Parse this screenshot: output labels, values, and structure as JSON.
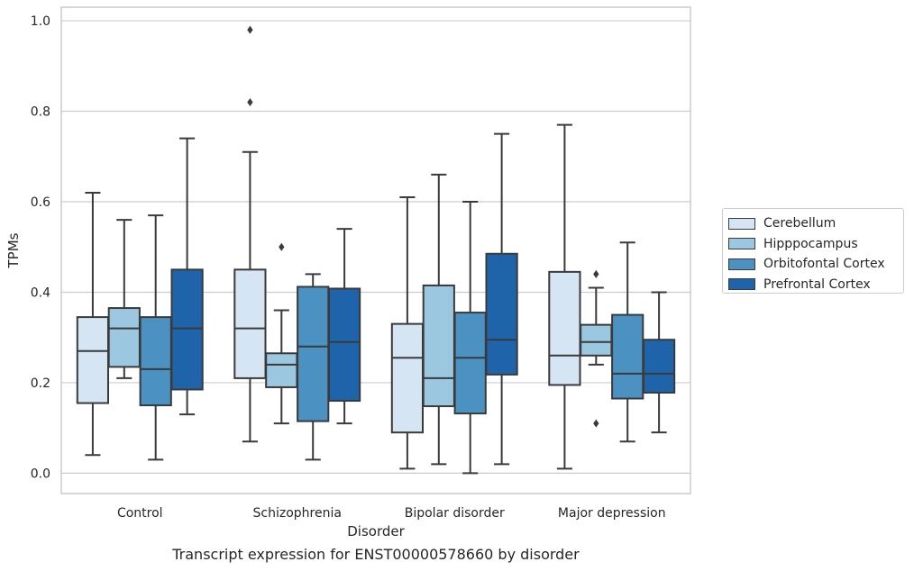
{
  "caption": "Transcript expression for ENST00000578660 by disorder",
  "colors": {
    "grid": "#cccccc",
    "frame": "#cccccc",
    "box_edge": "#3a3a3a",
    "series": [
      "#d6e5f4",
      "#9bc7e0",
      "#4b91c2",
      "#1f64ab"
    ]
  },
  "chart_data": {
    "type": "box",
    "xlabel": "Disorder",
    "ylabel": "TPMs",
    "ylim": [
      -0.045,
      1.03
    ],
    "yticks": [
      0.0,
      0.2,
      0.4,
      0.6,
      0.8,
      1.0
    ],
    "ytick_labels": [
      "0.0",
      "0.2",
      "0.4",
      "0.6",
      "0.8",
      "1.0"
    ],
    "grid": "horizontal",
    "legend_position": "outside-right",
    "categories": [
      "Control",
      "Schizophrenia",
      "Bipolar disorder",
      "Major depression"
    ],
    "series": [
      {
        "name": "Cerebellum",
        "boxes": [
          {
            "whislo": 0.04,
            "q1": 0.155,
            "med": 0.27,
            "q3": 0.345,
            "whishi": 0.62,
            "fliers": []
          },
          {
            "whislo": 0.07,
            "q1": 0.21,
            "med": 0.32,
            "q3": 0.45,
            "whishi": 0.71,
            "fliers": [
              0.82,
              0.98
            ]
          },
          {
            "whislo": 0.01,
            "q1": 0.09,
            "med": 0.255,
            "q3": 0.33,
            "whishi": 0.61,
            "fliers": []
          },
          {
            "whislo": 0.01,
            "q1": 0.195,
            "med": 0.26,
            "q3": 0.445,
            "whishi": 0.77,
            "fliers": []
          }
        ]
      },
      {
        "name": "Hipppocampus",
        "boxes": [
          {
            "whislo": 0.21,
            "q1": 0.235,
            "med": 0.32,
            "q3": 0.365,
            "whishi": 0.56,
            "fliers": []
          },
          {
            "whislo": 0.11,
            "q1": 0.19,
            "med": 0.24,
            "q3": 0.265,
            "whishi": 0.36,
            "fliers": [
              0.5
            ]
          },
          {
            "whislo": 0.02,
            "q1": 0.148,
            "med": 0.21,
            "q3": 0.415,
            "whishi": 0.66,
            "fliers": []
          },
          {
            "whislo": 0.24,
            "q1": 0.26,
            "med": 0.29,
            "q3": 0.328,
            "whishi": 0.41,
            "fliers": [
              0.11,
              0.44
            ]
          }
        ]
      },
      {
        "name": "Orbitofontal Cortex",
        "boxes": [
          {
            "whislo": 0.03,
            "q1": 0.15,
            "med": 0.23,
            "q3": 0.345,
            "whishi": 0.57,
            "fliers": []
          },
          {
            "whislo": 0.03,
            "q1": 0.115,
            "med": 0.28,
            "q3": 0.412,
            "whishi": 0.44,
            "fliers": []
          },
          {
            "whislo": 0.0,
            "q1": 0.132,
            "med": 0.255,
            "q3": 0.355,
            "whishi": 0.6,
            "fliers": []
          },
          {
            "whislo": 0.07,
            "q1": 0.165,
            "med": 0.22,
            "q3": 0.35,
            "whishi": 0.51,
            "fliers": []
          }
        ]
      },
      {
        "name": "Prefrontal Cortex",
        "boxes": [
          {
            "whislo": 0.13,
            "q1": 0.185,
            "med": 0.32,
            "q3": 0.45,
            "whishi": 0.74,
            "fliers": []
          },
          {
            "whislo": 0.11,
            "q1": 0.16,
            "med": 0.29,
            "q3": 0.408,
            "whishi": 0.54,
            "fliers": []
          },
          {
            "whislo": 0.02,
            "q1": 0.218,
            "med": 0.295,
            "q3": 0.485,
            "whishi": 0.75,
            "fliers": []
          },
          {
            "whislo": 0.09,
            "q1": 0.178,
            "med": 0.22,
            "q3": 0.295,
            "whishi": 0.4,
            "fliers": []
          }
        ]
      }
    ]
  }
}
